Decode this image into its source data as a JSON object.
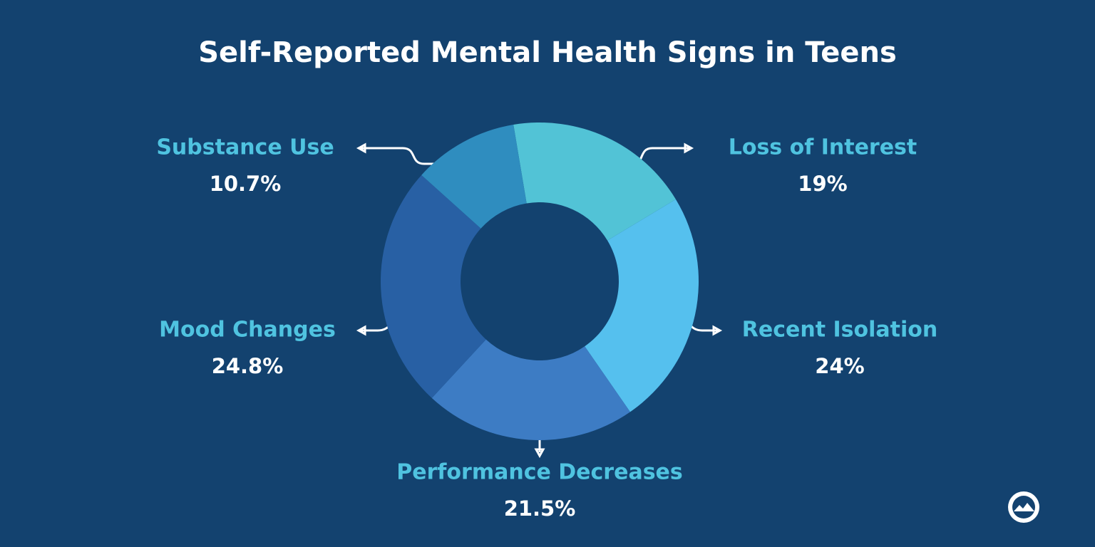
{
  "chart_data": {
    "type": "donut",
    "title": "Self-Reported Mental Health Signs in Teens",
    "categories": [
      "Loss of Interest",
      "Recent Isolation",
      "Performance Decreases",
      "Mood Changes",
      "Substance Use"
    ],
    "values": [
      19,
      24,
      21.5,
      24.8,
      10.7
    ],
    "value_labels": [
      "19%",
      "24%",
      "21.5%",
      "24.8%",
      "10.7%"
    ],
    "colors": [
      "#52c3d6",
      "#55c0ee",
      "#3d7cc4",
      "#2860a4",
      "#2f8dbf"
    ]
  }
}
